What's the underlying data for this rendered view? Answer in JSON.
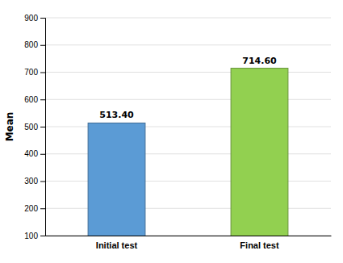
{
  "chart_data": {
    "type": "bar",
    "categories": [
      "Initial test",
      "Final test"
    ],
    "values": [
      513.4,
      714.6
    ],
    "value_labels": [
      "513.40",
      "714.60"
    ],
    "colors": [
      "#5B9BD5",
      "#92D050"
    ],
    "ylabel": "Mean",
    "ylim": [
      100,
      900
    ],
    "yticks": [
      100,
      200,
      300,
      400,
      500,
      600,
      700,
      800,
      900
    ],
    "grid": true,
    "data_labels": true
  }
}
